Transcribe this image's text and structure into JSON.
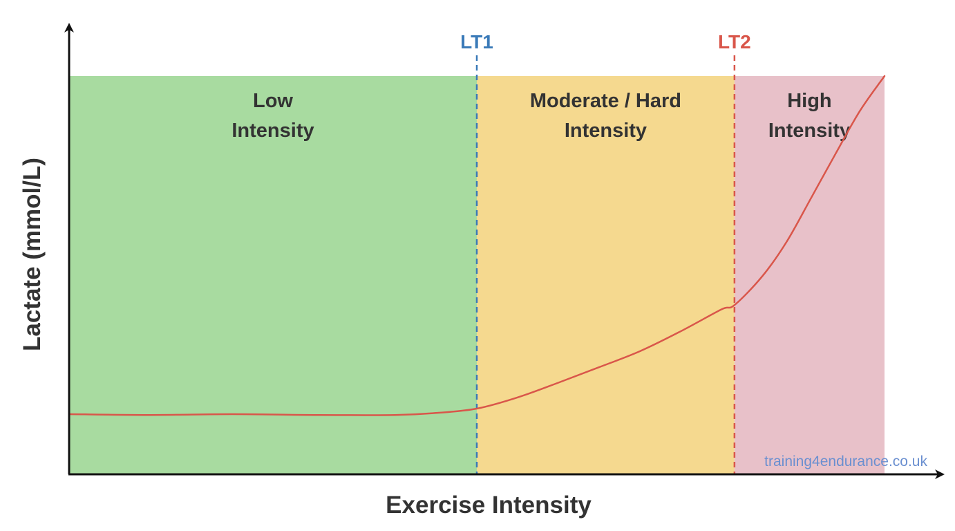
{
  "chart_data": {
    "type": "area",
    "title": "",
    "xlabel": "Exercise Intensity",
    "ylabel": "Lactate (mmol/L)",
    "axis_ticks": "none",
    "grid": false,
    "x_range": [
      0,
      100
    ],
    "y_range": [
      0,
      100
    ],
    "zones": [
      {
        "name": "low",
        "label_lines": [
          "Low",
          "Intensity"
        ],
        "x_start": 0,
        "x_end": 50,
        "color": "#a8dba0"
      },
      {
        "name": "moderate",
        "label_lines": [
          "Moderate / Hard",
          "Intensity"
        ],
        "x_start": 50,
        "x_end": 81.6,
        "color": "#f5d98f"
      },
      {
        "name": "high",
        "label_lines": [
          "High",
          "Intensity"
        ],
        "x_start": 81.6,
        "x_end": 100,
        "color": "#e8c1c9"
      }
    ],
    "thresholds": [
      {
        "label": "LT1",
        "x": 50,
        "color": "#3a7ab8"
      },
      {
        "label": "LT2",
        "x": 81.6,
        "color": "#d9564a"
      }
    ],
    "series": [
      {
        "color": "#d9564a",
        "x": [
          0,
          10,
          20,
          30,
          40,
          45,
          50,
          55,
          60,
          65,
          70,
          75,
          80,
          81.6,
          85,
          88,
          91,
          94,
          97,
          100
        ],
        "y": [
          15.1,
          14.9,
          15.1,
          14.9,
          14.9,
          15.4,
          16.5,
          19.3,
          23.0,
          26.9,
          30.9,
          35.9,
          41.4,
          42.5,
          49.7,
          58.4,
          69.4,
          80.5,
          91.3,
          100
        ]
      }
    ]
  },
  "watermark": "training4endurance.co.uk",
  "colors": {
    "axis": "#111111",
    "text": "#333333",
    "watermark": "#6a8fd0"
  }
}
